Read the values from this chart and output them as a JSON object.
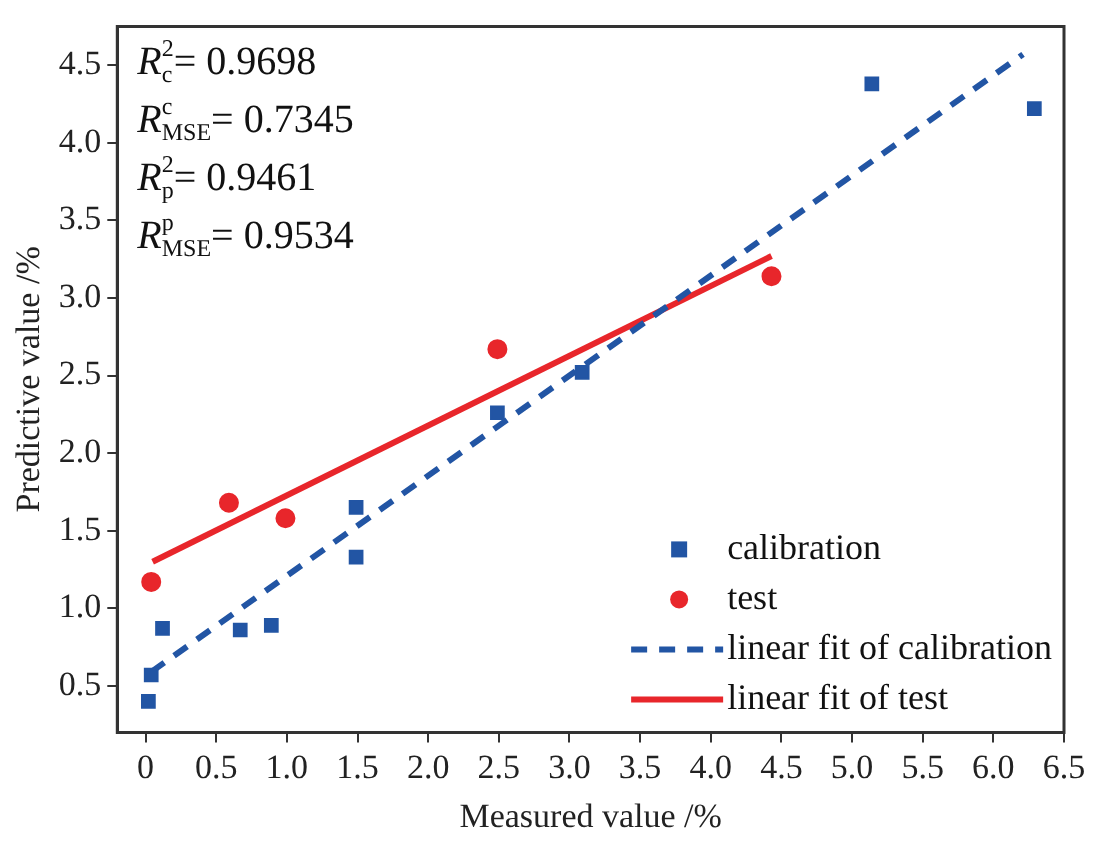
{
  "chart_data": {
    "type": "scatter",
    "xlabel": "Measured value /%",
    "ylabel": "Predictive value /%",
    "xlim": [
      -0.2,
      6.5
    ],
    "xticks": [
      {
        "value": 0,
        "label": "0"
      },
      {
        "value": 0.5,
        "label": "0.5"
      },
      {
        "value": 1,
        "label": "1.0"
      },
      {
        "value": 1.5,
        "label": "1.5"
      },
      {
        "value": 2,
        "label": "2.0"
      },
      {
        "value": 2.5,
        "label": "2.5"
      },
      {
        "value": 3,
        "label": "3.0"
      },
      {
        "value": 3.5,
        "label": "3.5"
      },
      {
        "value": 4,
        "label": "4.0"
      },
      {
        "value": 4.5,
        "label": "4.5"
      },
      {
        "value": 5,
        "label": "5.0"
      },
      {
        "value": 5.5,
        "label": "5.5"
      },
      {
        "value": 6,
        "label": "6.0"
      },
      {
        "value": 6.5,
        "label": "6.5"
      }
    ],
    "ylim": [
      0.2,
      4.75
    ],
    "yticks": [
      0.5,
      {
        "value": 1,
        "label": "1.0"
      },
      1.5,
      {
        "value": 2,
        "label": "2.0"
      },
      2.5,
      {
        "value": 3,
        "label": "3.0"
      },
      3.5,
      {
        "value": 4,
        "label": "4.0"
      },
      4.5
    ],
    "grid": false,
    "legend": "bottom right",
    "annotations": [
      "R$^{2}$$_{c}$= 0.9698",
      "R$^{c}$$_{MSE}$= 0.7345",
      "R$^{2}$$_{p}$= 0.9461",
      "R$^{p}$$_{MSE}$= 0.9534"
    ],
    "series": [
      {
        "name": "calibration",
        "marker": "square",
        "color": "#2255a4",
        "x": [
          0.02,
          0.04,
          0.12,
          0.67,
          0.89,
          1.49,
          1.49,
          2.49,
          3.09,
          5.14,
          6.29
        ],
        "values": [
          0.4,
          0.57,
          0.87,
          0.86,
          0.89,
          1.65,
          1.33,
          2.26,
          2.52,
          4.38,
          4.22
        ]
      },
      {
        "name": "test",
        "marker": "circle",
        "color": "#e8262b",
        "x": [
          0.04,
          0.59,
          0.99,
          2.49,
          4.43
        ],
        "values": [
          1.17,
          1.68,
          1.58,
          2.67,
          3.14
        ]
      },
      {
        "name": "linear fit of calibration",
        "type": "line",
        "line_style": "dashed",
        "color": "#2255a4",
        "x": [
          0.04,
          6.21
        ],
        "values": [
          0.59,
          4.57
        ]
      },
      {
        "name": "linear fit of test",
        "type": "line",
        "line_style": "solid",
        "color": "#e8262b",
        "x": [
          0.05,
          4.43
        ],
        "values": [
          1.3,
          3.27
        ]
      }
    ]
  }
}
